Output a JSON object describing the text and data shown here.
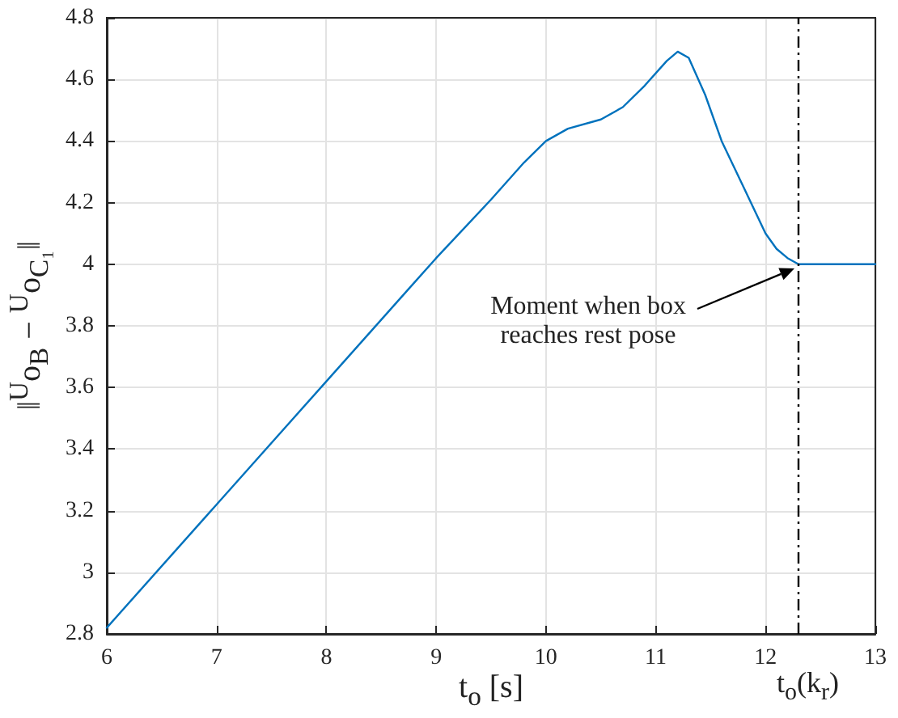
{
  "chart_data": {
    "type": "line",
    "xlabel": "t$_{o}$ [s]",
    "ylabel": "‖$^{U}$o$_{B}$ − $^{U}$o$_{C₁}$‖",
    "series": [
      {
        "color": "#0072bd",
        "x": [
          6,
          7,
          8,
          9,
          9.5,
          9.8,
          10,
          10.2,
          10.5,
          10.7,
          10.9,
          11.1,
          11.2,
          11.3,
          11.45,
          11.6,
          11.8,
          12,
          12.1,
          12.2,
          12.3,
          13
        ],
        "values": [
          2.82,
          3.22,
          3.62,
          4.02,
          4.21,
          4.33,
          4.4,
          4.44,
          4.47,
          4.51,
          4.58,
          4.66,
          4.69,
          4.67,
          4.55,
          4.4,
          4.25,
          4.1,
          4.05,
          4.02,
          4.0,
          4.0
        ]
      }
    ],
    "xlim": [
      6,
      13
    ],
    "xticks": [
      6,
      7,
      8,
      9,
      10,
      11,
      12,
      13
    ],
    "ylim": [
      2.8,
      4.8
    ],
    "yticks": [
      2.8,
      3,
      3.2,
      3.4,
      3.6,
      3.8,
      4,
      4.2,
      4.4,
      4.6,
      4.8
    ],
    "grid": true,
    "marker": "none",
    "ref_lines": [
      {
        "axis": "x",
        "value": 12.3,
        "label": "t$_{o}$(k$_{r}$)",
        "color": "#000000",
        "line_style": "dashed"
      }
    ],
    "annotations": [
      "Moment when box reaches rest pose"
    ]
  }
}
